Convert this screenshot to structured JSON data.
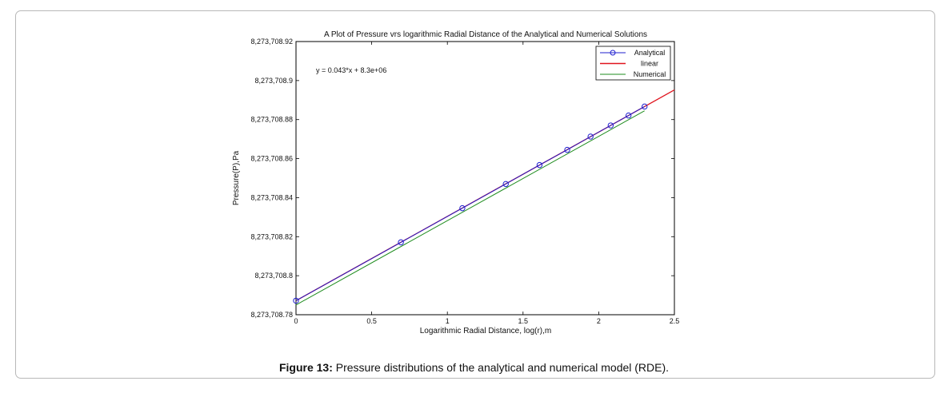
{
  "chart_data": {
    "type": "line",
    "title": "A Plot of Pressure vrs logarithmic Radial Distance of the Analytical and Numerical Solutions",
    "xlabel": "Logarithmic Radial Distance, log(r),m",
    "ylabel": "Pressure(P),Pa",
    "xlim": [
      0,
      2.5
    ],
    "ylim": [
      8273708.78,
      8273708.92
    ],
    "x_ticks": [
      0,
      0.5,
      1,
      1.5,
      2,
      2.5
    ],
    "x_tick_labels": [
      "0",
      "0.5",
      "1",
      "1.5",
      "2",
      "2.5"
    ],
    "y_ticks": [
      8273708.78,
      8273708.8,
      8273708.82,
      8273708.84,
      8273708.86,
      8273708.88,
      8273708.9,
      8273708.92
    ],
    "y_tick_labels": [
      "8,273,708.78",
      "8,273,708.8",
      "8,273,708.82",
      "8,273,708.84",
      "8,273,708.86",
      "8,273,708.88",
      "8,273,708.9",
      "8,273,708.92"
    ],
    "legend_position": "top-right",
    "annotation": "y = 0.043*x + 8.3e+06",
    "series": [
      {
        "name": "Analytical",
        "color": "#1f1fcf",
        "marker": "circle",
        "x": [
          0,
          0.693,
          1.099,
          1.386,
          1.609,
          1.792,
          1.946,
          2.079,
          2.197,
          2.303
        ],
        "y": [
          8273708.7872,
          8273708.8171,
          8273708.8346,
          8273708.847,
          8273708.8567,
          8273708.8645,
          8273708.8713,
          8273708.877,
          8273708.8821,
          8273708.8867
        ]
      },
      {
        "name": "linear",
        "color": "#e0141e",
        "x": [
          0,
          2.5
        ],
        "y": [
          8273708.7872,
          8273708.8952
        ]
      },
      {
        "name": "Numerical",
        "color": "#1e8c1e",
        "x": [
          0,
          2.303
        ],
        "y": [
          8273708.785,
          8273708.8845
        ]
      }
    ]
  },
  "caption": {
    "label": "Figure 13:",
    "text": " Pressure distributions of the analytical and numerical model (RDE)."
  }
}
